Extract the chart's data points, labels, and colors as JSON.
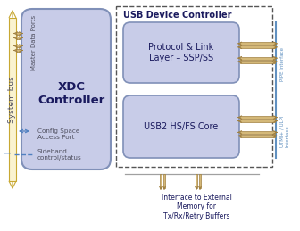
{
  "fig_w": 3.36,
  "fig_h": 2.59,
  "dpi": 100,
  "bg": "#ffffff",
  "bus_fill": "#faf3d0",
  "bus_edge": "#c8a832",
  "box_fill": "#c8cce8",
  "box_edge": "#8090b8",
  "outer_edge": "#555555",
  "pipe_line": "#6090c0",
  "arrow_fill": "#d4b878",
  "arrow_edge": "#a08040",
  "cfg_arrow": "#5080c0",
  "sb_dash": "#5080c0",
  "text_dark": "#1a1a5e",
  "text_mid": "#505060",
  "title_usb": "USB Device Controller",
  "lbl_xdc": "XDC\nController",
  "lbl_master": "Master Data Ports",
  "lbl_proto": "Protocol & Link\nLayer – SSP/SS",
  "lbl_usb2": "USB2 HS/FS Core",
  "lbl_cfg": "Config Space\nAccess Port",
  "lbl_sb": "Sideband\ncontrol/status",
  "lbl_sysbus": "System bus",
  "lbl_iface": "Interface to External\nMemory for\nTx/Rx/Retry Buffers",
  "lbl_pipe": "PIPE Interface",
  "lbl_utmi": "UTMI+ / ULPI\nInterface"
}
